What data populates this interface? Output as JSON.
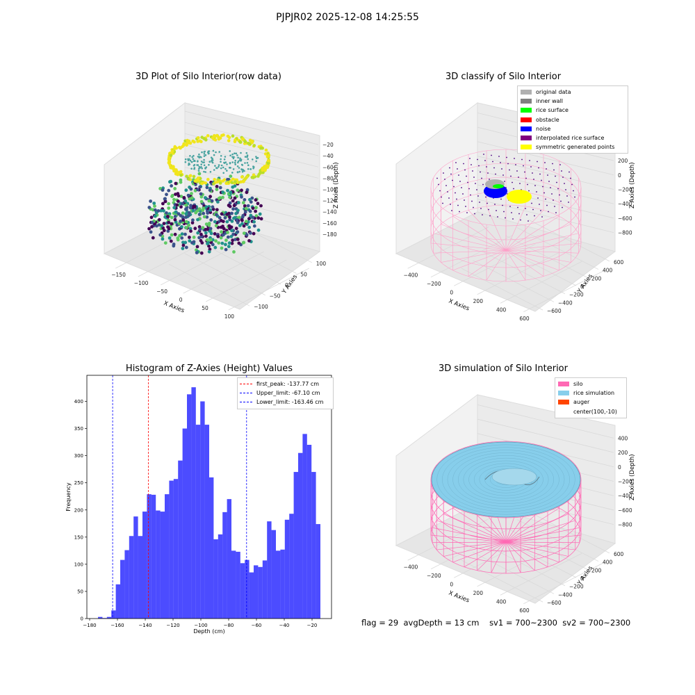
{
  "figure": {
    "suptitle": "PJPJR02 2025-12-08 14:25:55",
    "stats": {
      "flag": "flag = 29",
      "avg_depth": "avgDepth = 13 cm",
      "sv1": "sv1 = 700~2300",
      "sv2": "sv2 = 700~2300"
    }
  },
  "chart_data": [
    {
      "type": "scatter",
      "projection": "3d",
      "title": "3D Plot of Silo Interior(row data)",
      "xlabel": "X Axies",
      "ylabel": "Y Axies",
      "zlabel": "Z Axies (Depth)",
      "xticks": [
        "−150",
        "−100",
        "−50",
        "0",
        "50",
        "100"
      ],
      "yticks": [
        "−100",
        "−50",
        "0",
        "50",
        "100"
      ],
      "zticks": [
        "−20",
        "−40",
        "−60",
        "−80",
        "−100",
        "−120",
        "−140",
        "−160",
        "−180"
      ],
      "xlim": [
        -170,
        100
      ],
      "ylim": [
        -100,
        110
      ],
      "zlim": [
        -185,
        -15
      ],
      "colormap": "viridis",
      "grid": true
    },
    {
      "type": "scatter",
      "projection": "3d",
      "title": "3D classify of Silo Interior",
      "xlabel": "X Axies",
      "ylabel": "Y Axies",
      "zlabel": "Z Axies (Depth)",
      "xticks": [
        "−400",
        "−200",
        "0",
        "200",
        "400",
        "600"
      ],
      "yticks": [
        "−600",
        "−400",
        "−200",
        "0",
        "200",
        "400",
        "600"
      ],
      "zticks": [
        "400",
        "200",
        "0",
        "−200",
        "−400",
        "−600",
        "−800"
      ],
      "legend_position": "top-right",
      "legend": [
        {
          "label": "original data",
          "color": "#b0b0b0"
        },
        {
          "label": "inner wall",
          "color": "#808080"
        },
        {
          "label": "rice surface",
          "color": "#00ff00"
        },
        {
          "label": "obstacle",
          "color": "#ff0000"
        },
        {
          "label": "noise",
          "color": "#0000ff"
        },
        {
          "label": "interpolated rice surface",
          "color": "#800080"
        },
        {
          "label": "symmetric generated points",
          "color": "#ffff00"
        }
      ],
      "grid": true
    },
    {
      "type": "bar",
      "title": "Histogram of Z-Axies (Height) Values",
      "xlabel": "Depth (cm)",
      "ylabel": "Frequency",
      "xlim": [
        -182,
        -6
      ],
      "ylim": [
        0,
        448
      ],
      "xticks": [
        -180,
        -160,
        -140,
        -120,
        -100,
        -80,
        -60,
        -40,
        -20
      ],
      "yticks": [
        0,
        50,
        100,
        150,
        200,
        250,
        300,
        350,
        400
      ],
      "bin_start": -174,
      "bin_width": 3.2,
      "values": [
        3,
        1,
        3,
        15,
        63,
        108,
        126,
        152,
        188,
        152,
        197,
        229,
        228,
        199,
        197,
        229,
        254,
        257,
        291,
        350,
        413,
        426,
        357,
        400,
        357,
        260,
        146,
        155,
        196,
        220,
        125,
        123,
        102,
        108,
        85,
        98,
        95,
        107,
        179,
        163,
        125,
        127,
        182,
        193,
        270,
        305,
        340,
        320,
        270,
        174
      ],
      "color": "#0000ff",
      "legend_position": "top-right",
      "lines": [
        {
          "label": "first_peak: -137.77 cm",
          "x": -137.77,
          "color": "#ff0000"
        },
        {
          "label": "Upper_limit: -67.10 cm",
          "x": -67.1,
          "color": "#0000ff"
        },
        {
          "label": "Lower_limit: -163.46 cm",
          "x": -163.46,
          "color": "#0000ff"
        }
      ]
    },
    {
      "type": "area",
      "projection": "3d",
      "title": "3D simulation of Silo Interior",
      "xlabel": "X Axies",
      "ylabel": "Y Axies",
      "zlabel": "Z Axies (Depth)",
      "xticks": [
        "−400",
        "−200",
        "0",
        "200",
        "400",
        "600"
      ],
      "yticks": [
        "−600",
        "−400",
        "−200",
        "0",
        "200",
        "400",
        "600"
      ],
      "zticks": [
        "400",
        "200",
        "0",
        "−200",
        "−400",
        "−600",
        "−800"
      ],
      "legend_position": "top-right",
      "legend": [
        {
          "label": "silo",
          "color": "#ff69b4"
        },
        {
          "label": "rice simulation",
          "color": "#87ceeb"
        },
        {
          "label": "auger",
          "color": "#ff4500"
        },
        {
          "label": "center(100,-10)",
          "color": ""
        }
      ],
      "grid": true
    }
  ]
}
